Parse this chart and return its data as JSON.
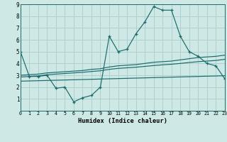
{
  "xlabel": "Humidex (Indice chaleur)",
  "xlim": [
    0,
    23
  ],
  "ylim": [
    0,
    9
  ],
  "bg_color": "#cde8e5",
  "grid_color": "#afd0cd",
  "line_color": "#1a6b6b",
  "x": [
    0,
    1,
    2,
    3,
    4,
    5,
    6,
    7,
    8,
    9,
    10,
    11,
    12,
    13,
    14,
    15,
    16,
    17,
    18,
    19,
    20,
    21,
    22,
    23
  ],
  "y_main": [
    5.0,
    2.9,
    2.9,
    3.0,
    1.9,
    2.0,
    0.75,
    1.1,
    1.3,
    2.0,
    6.3,
    5.0,
    5.2,
    6.5,
    7.5,
    8.8,
    8.5,
    8.5,
    6.3,
    5.0,
    4.6,
    4.0,
    3.8,
    2.7
  ],
  "y_upper": [
    3.0,
    3.05,
    3.1,
    3.2,
    3.25,
    3.3,
    3.35,
    3.4,
    3.5,
    3.55,
    3.7,
    3.8,
    3.85,
    3.9,
    4.0,
    4.1,
    4.15,
    4.2,
    4.3,
    4.4,
    4.5,
    4.55,
    4.6,
    4.7
  ],
  "y_mid": [
    2.85,
    2.9,
    2.95,
    3.05,
    3.1,
    3.15,
    3.2,
    3.25,
    3.32,
    3.38,
    3.5,
    3.58,
    3.63,
    3.68,
    3.75,
    3.82,
    3.88,
    3.93,
    4.0,
    4.08,
    4.15,
    4.2,
    4.25,
    4.35
  ],
  "y_lower": [
    2.5,
    2.52,
    2.54,
    2.56,
    2.58,
    2.6,
    2.62,
    2.64,
    2.66,
    2.68,
    2.7,
    2.72,
    2.74,
    2.76,
    2.78,
    2.8,
    2.82,
    2.84,
    2.86,
    2.88,
    2.9,
    2.92,
    2.94,
    2.96
  ],
  "xtick_labels": [
    "0",
    "1",
    "2",
    "3",
    "4",
    "5",
    "6",
    "7",
    "8",
    "9",
    "10",
    "11",
    "12",
    "13",
    "14",
    "15",
    "16",
    "17",
    "18",
    "19",
    "20",
    "21",
    "22",
    "23"
  ],
  "ytick_labels": [
    "1",
    "2",
    "3",
    "4",
    "5",
    "6",
    "7",
    "8",
    "9"
  ]
}
